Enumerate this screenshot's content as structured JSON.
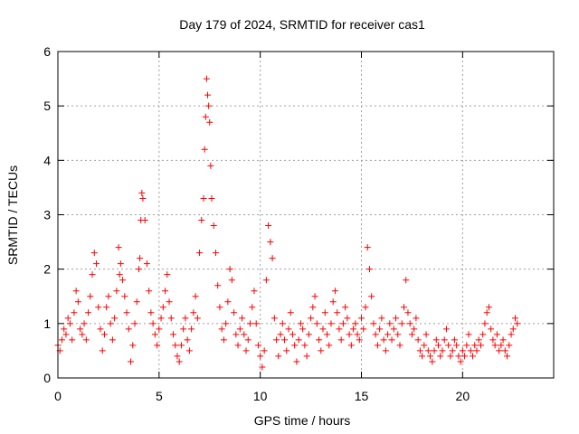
{
  "chart_data": {
    "type": "scatter",
    "title": "Day 179 of 2024, SRMTID for receiver cas1",
    "xlabel": "GPS time / hours",
    "ylabel": "SRMTID / TECUs",
    "xlim": [
      0,
      24.5
    ],
    "ylim": [
      0,
      6
    ],
    "xticks": [
      0,
      5,
      10,
      15,
      20
    ],
    "yticks": [
      0,
      1,
      2,
      3,
      4,
      5,
      6
    ],
    "grid": true,
    "marker": "+",
    "color": "#ff0000",
    "series": [
      {
        "name": "SRMTID",
        "x": [
          0.0,
          0.1,
          0.2,
          0.3,
          0.4,
          0.5,
          0.6,
          0.7,
          0.8,
          0.9,
          1.0,
          1.1,
          1.2,
          1.3,
          1.4,
          1.5,
          1.6,
          1.7,
          1.8,
          1.9,
          2.0,
          2.1,
          2.2,
          2.3,
          2.4,
          2.5,
          2.6,
          2.7,
          2.8,
          2.9,
          3.0,
          3.05,
          3.1,
          3.2,
          3.3,
          3.4,
          3.5,
          3.6,
          3.7,
          3.8,
          3.9,
          4.0,
          4.05,
          4.1,
          4.15,
          4.2,
          4.3,
          4.4,
          4.5,
          4.6,
          4.7,
          4.8,
          4.9,
          5.0,
          5.1,
          5.2,
          5.3,
          5.4,
          5.5,
          5.6,
          5.7,
          5.8,
          5.9,
          6.0,
          6.1,
          6.2,
          6.3,
          6.4,
          6.5,
          6.6,
          6.7,
          6.8,
          6.9,
          7.0,
          7.1,
          7.2,
          7.25,
          7.3,
          7.35,
          7.4,
          7.45,
          7.5,
          7.55,
          7.6,
          7.7,
          7.8,
          7.9,
          8.0,
          8.1,
          8.2,
          8.3,
          8.4,
          8.5,
          8.6,
          8.7,
          8.8,
          8.9,
          9.0,
          9.1,
          9.2,
          9.3,
          9.4,
          9.5,
          9.6,
          9.7,
          9.8,
          9.9,
          10.0,
          10.1,
          10.2,
          10.3,
          10.4,
          10.5,
          10.6,
          10.7,
          10.8,
          10.9,
          11.0,
          11.1,
          11.2,
          11.3,
          11.4,
          11.5,
          11.6,
          11.7,
          11.8,
          11.9,
          12.0,
          12.1,
          12.2,
          12.3,
          12.4,
          12.5,
          12.6,
          12.7,
          12.8,
          12.9,
          13.0,
          13.1,
          13.2,
          13.3,
          13.4,
          13.5,
          13.6,
          13.7,
          13.8,
          13.9,
          14.0,
          14.1,
          14.2,
          14.3,
          14.4,
          14.5,
          14.6,
          14.7,
          14.8,
          14.9,
          15.0,
          15.1,
          15.2,
          15.3,
          15.4,
          15.5,
          15.6,
          15.7,
          15.8,
          15.9,
          16.0,
          16.1,
          16.2,
          16.3,
          16.4,
          16.5,
          16.6,
          16.7,
          16.8,
          16.9,
          17.0,
          17.1,
          17.2,
          17.3,
          17.4,
          17.5,
          17.6,
          17.7,
          17.8,
          17.9,
          18.0,
          18.1,
          18.2,
          18.3,
          18.4,
          18.5,
          18.6,
          18.7,
          18.8,
          18.9,
          19.0,
          19.1,
          19.2,
          19.3,
          19.4,
          19.5,
          19.6,
          19.7,
          19.8,
          19.9,
          20.0,
          20.1,
          20.2,
          20.3,
          20.4,
          20.5,
          20.6,
          20.7,
          20.8,
          20.9,
          21.0,
          21.1,
          21.2,
          21.3,
          21.4,
          21.5,
          21.6,
          21.7,
          21.8,
          21.9,
          22.0,
          22.1,
          22.2,
          22.3,
          22.4,
          22.5,
          22.6,
          22.7
        ],
        "y": [
          0.6,
          0.5,
          0.7,
          0.9,
          0.8,
          1.1,
          1.0,
          0.7,
          1.2,
          1.6,
          1.4,
          0.9,
          0.8,
          1.0,
          0.7,
          1.2,
          1.5,
          1.9,
          2.3,
          2.1,
          1.3,
          0.9,
          0.5,
          0.8,
          1.3,
          1.5,
          1.0,
          0.7,
          1.1,
          1.6,
          2.4,
          1.9,
          2.1,
          1.8,
          1.5,
          1.2,
          0.9,
          0.3,
          0.6,
          1.0,
          1.4,
          2.0,
          2.2,
          2.9,
          3.4,
          3.3,
          2.9,
          2.1,
          1.6,
          1.2,
          1.0,
          0.8,
          0.6,
          0.9,
          1.1,
          1.3,
          1.6,
          1.9,
          1.4,
          1.1,
          0.8,
          0.6,
          0.4,
          0.3,
          0.6,
          0.9,
          1.1,
          0.7,
          0.5,
          0.9,
          1.2,
          1.5,
          1.1,
          2.3,
          2.9,
          3.3,
          4.2,
          4.8,
          5.5,
          5.2,
          5.0,
          4.7,
          3.9,
          3.3,
          2.8,
          2.3,
          1.7,
          1.3,
          0.9,
          0.7,
          1.0,
          1.4,
          2.0,
          1.8,
          1.2,
          0.8,
          0.6,
          0.9,
          1.1,
          0.8,
          0.5,
          0.7,
          1.0,
          1.3,
          1.6,
          1.0,
          0.6,
          0.4,
          0.2,
          0.5,
          1.8,
          2.8,
          2.5,
          2.2,
          1.1,
          0.7,
          0.4,
          0.8,
          1.0,
          0.7,
          0.5,
          0.9,
          1.2,
          0.8,
          0.6,
          0.3,
          0.7,
          1.0,
          0.9,
          0.6,
          0.4,
          0.8,
          1.1,
          1.3,
          1.5,
          1.0,
          0.7,
          0.5,
          0.9,
          1.2,
          0.8,
          0.6,
          1.0,
          1.4,
          1.6,
          1.2,
          0.9,
          0.7,
          1.0,
          1.3,
          1.1,
          0.8,
          0.6,
          0.9,
          1.0,
          0.8,
          0.7,
          1.1,
          0.9,
          1.3,
          2.4,
          2.0,
          1.5,
          1.0,
          0.8,
          0.6,
          0.9,
          1.1,
          0.7,
          0.5,
          0.8,
          1.0,
          0.7,
          0.9,
          1.1,
          0.8,
          0.6,
          1.0,
          1.3,
          1.8,
          1.2,
          1.0,
          0.8,
          0.9,
          1.1,
          0.7,
          0.5,
          0.4,
          0.6,
          0.8,
          0.5,
          0.4,
          0.3,
          0.5,
          0.7,
          0.6,
          0.4,
          0.5,
          0.7,
          0.9,
          0.6,
          0.4,
          0.5,
          0.7,
          0.6,
          0.4,
          0.3,
          0.5,
          0.4,
          0.6,
          0.8,
          0.5,
          0.4,
          0.6,
          0.5,
          0.7,
          0.6,
          0.8,
          1.0,
          1.2,
          1.3,
          0.9,
          0.7,
          0.6,
          0.8,
          0.5,
          0.6,
          0.7,
          0.5,
          0.4,
          0.6,
          0.8,
          0.9,
          1.1,
          1.0
        ]
      }
    ]
  }
}
